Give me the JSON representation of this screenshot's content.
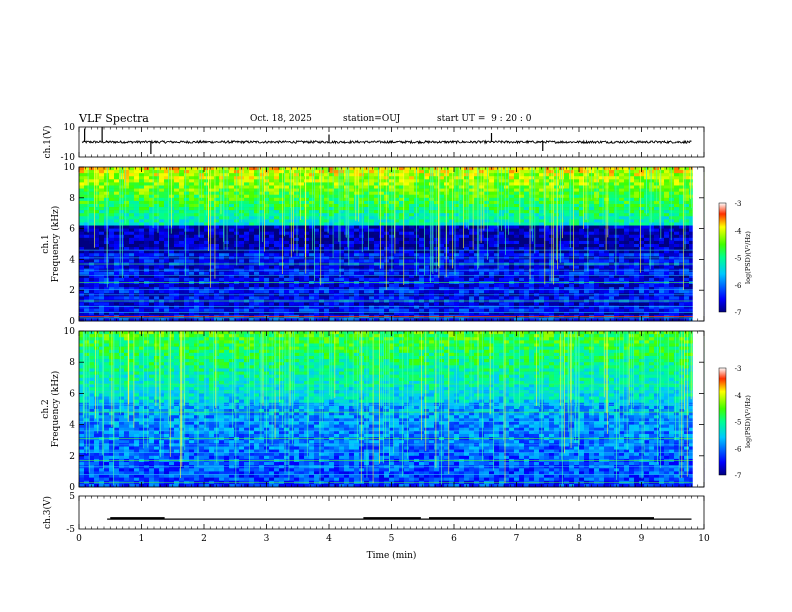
{
  "header": {
    "title": "VLF Spectra",
    "date": "Oct. 18, 2025",
    "station": "station=OUJ",
    "start_ut": "start UT =  9 : 20 : 0"
  },
  "chart_data": [
    {
      "type": "line",
      "name": "ch1-waveform",
      "ylabel": "ch.1(V)",
      "ylim": [
        -10,
        10
      ],
      "yticks": [
        10,
        -10
      ],
      "xlim": [
        0,
        10
      ],
      "baseline": 0,
      "description_values": {
        "noise_amplitude_v": 0.8,
        "spikes_v": [
          [
            0.09,
            9
          ],
          [
            0.37,
            10
          ],
          [
            1.15,
            -8
          ],
          [
            7.42,
            -6
          ],
          [
            4.0,
            5
          ],
          [
            6.6,
            6
          ]
        ]
      }
    },
    {
      "type": "heatmap",
      "name": "ch1-spectrogram",
      "ylabel": "ch.1 Frequency (kHz)",
      "ylim": [
        0,
        10
      ],
      "yticks": [
        0,
        2,
        4,
        6,
        8,
        10
      ],
      "xlim": [
        0,
        10
      ],
      "colorbar": {
        "label": "log(PSD)(V²/Hz)",
        "range": [
          -7,
          -3
        ],
        "ticks": [
          -3,
          -4,
          -5,
          -6,
          -7
        ]
      }
    },
    {
      "type": "heatmap",
      "name": "ch2-spectrogram",
      "ylabel": "ch.2 Frequency (kHz)",
      "ylim": [
        0,
        10
      ],
      "yticks": [
        0,
        2,
        4,
        6,
        8,
        10
      ],
      "xlim": [
        0,
        10
      ],
      "colorbar": {
        "label": "log(PSD)(V²/Hz)",
        "range": [
          -7,
          -3
        ],
        "ticks": [
          -3,
          -4,
          -5,
          -6,
          -7
        ]
      }
    },
    {
      "type": "line",
      "name": "ch3-signal",
      "ylabel": "ch.3(V)",
      "ylim": [
        -5,
        5
      ],
      "yticks": [
        5,
        -5
      ],
      "xlim": [
        0,
        10
      ],
      "baseline": -2,
      "segments_high": [
        [
          0.5,
          1.37
        ],
        [
          4.55,
          5.47
        ],
        [
          5.6,
          9.2
        ]
      ],
      "high_level": -1.4
    }
  ],
  "xaxis": {
    "label": "Time (min)",
    "ticks": [
      0,
      1,
      2,
      3,
      4,
      5,
      6,
      7,
      8,
      9,
      10
    ]
  }
}
